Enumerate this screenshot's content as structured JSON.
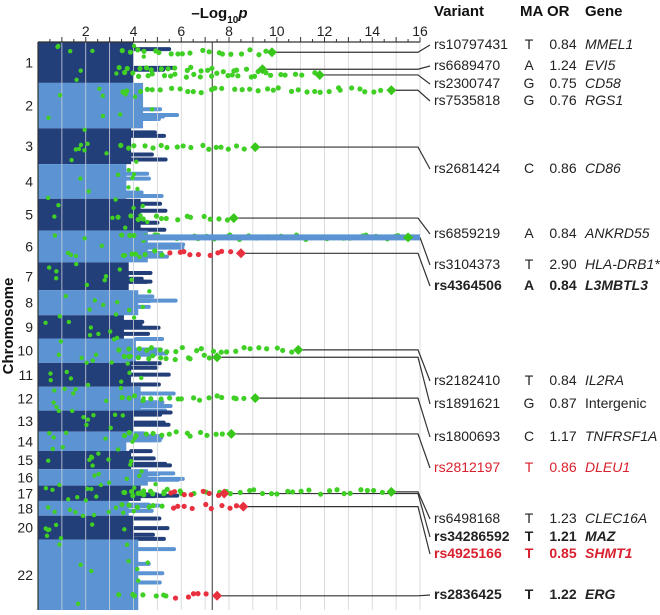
{
  "chart_data": {
    "type": "scatter",
    "subtype": "manhattan",
    "x_axis_title": "–Log",
    "x_axis_sub": "10",
    "x_axis_var": "p",
    "ylabel": "Chromosome",
    "xlim": [
      0,
      16
    ],
    "x_ticks": [
      "2",
      "4",
      "6",
      "8",
      "10",
      "12",
      "14",
      "16"
    ],
    "threshold": 7.3,
    "chromosomes": [
      "1",
      "2",
      "3",
      "4",
      "5",
      "6",
      "7",
      "8",
      "9",
      "10",
      "11",
      "12",
      "13",
      "14",
      "15",
      "16",
      "17",
      "18",
      "20",
      "22"
    ],
    "chrom_ranges": [
      [
        0,
        0.072
      ],
      [
        0.072,
        0.152
      ],
      [
        0.152,
        0.215
      ],
      [
        0.215,
        0.276
      ],
      [
        0.276,
        0.332
      ],
      [
        0.332,
        0.388
      ],
      [
        0.388,
        0.437
      ],
      [
        0.437,
        0.481
      ],
      [
        0.481,
        0.522
      ],
      [
        0.522,
        0.565
      ],
      [
        0.565,
        0.607
      ],
      [
        0.607,
        0.649
      ],
      [
        0.649,
        0.686
      ],
      [
        0.686,
        0.72
      ],
      [
        0.72,
        0.752
      ],
      [
        0.752,
        0.781
      ],
      [
        0.781,
        0.808
      ],
      [
        0.808,
        0.834
      ],
      [
        0.834,
        0.876
      ],
      [
        0.876,
        1.0
      ]
    ],
    "headers": {
      "variant": "Variant",
      "ma": "MA",
      "or": "OR",
      "gene": "Gene"
    },
    "hits": [
      {
        "variant": "rs10797431",
        "ma": "T",
        "or": "0.84",
        "gene": "MMEL1",
        "pos": 0.018,
        "p": 9.8,
        "style": "normal",
        "color": "green"
      },
      {
        "variant": "rs6689470",
        "ma": "A",
        "or": "1.24",
        "gene": "EVI5",
        "pos": 0.048,
        "p": 9.4,
        "style": "normal",
        "color": "green"
      },
      {
        "variant": "rs2300747",
        "ma": "G",
        "or": "0.75",
        "gene": "CD58",
        "pos": 0.058,
        "p": 11.8,
        "style": "normal",
        "color": "green"
      },
      {
        "variant": "rs7535818",
        "ma": "G",
        "or": "0.76",
        "gene": "RGS1",
        "pos": 0.085,
        "p": 14.8,
        "style": "normal",
        "color": "green"
      },
      {
        "variant": "rs2681424",
        "ma": "C",
        "or": "0.86",
        "gene": "CD86",
        "pos": 0.185,
        "p": 9.1,
        "style": "normal",
        "color": "green"
      },
      {
        "variant": "rs6859219",
        "ma": "A",
        "or": "0.84",
        "gene": "ANKRD55",
        "pos": 0.31,
        "p": 8.2,
        "style": "normal",
        "color": "green"
      },
      {
        "variant": "rs3104373",
        "ma": "T",
        "or": "2.90",
        "gene": "HLA-DRB1*",
        "pos": 0.344,
        "p": 15.5,
        "style": "normal",
        "color": "green"
      },
      {
        "variant": "rs4364506",
        "ma": "A",
        "or": "0.84",
        "gene": "L3MBTL3",
        "pos": 0.372,
        "p": 8.5,
        "style": "bold",
        "color": "red"
      },
      {
        "variant": "rs2182410",
        "ma": "T",
        "or": "0.84",
        "gene": "IL2RA",
        "pos": 0.542,
        "p": 10.9,
        "style": "normal",
        "color": "green"
      },
      {
        "variant": "rs1891621",
        "ma": "G",
        "or": "0.87",
        "gene": "Intergenic",
        "pos": 0.555,
        "p": 7.5,
        "style": "normal",
        "color": "green"
      },
      {
        "variant": "rs1800693",
        "ma": "C",
        "or": "1.17",
        "gene": "TNFRSF1A",
        "pos": 0.627,
        "p": 9.1,
        "style": "normal",
        "color": "green"
      },
      {
        "variant": "rs2812197",
        "ma": "T",
        "or": "0.86",
        "gene": "DLEU1",
        "pos": 0.69,
        "p": 8.1,
        "style": "red",
        "color": "green"
      },
      {
        "variant": "rs6498168",
        "ma": "T",
        "or": "1.23",
        "gene": "CLEC16A",
        "pos": 0.792,
        "p": 14.8,
        "style": "normal",
        "color": "green"
      },
      {
        "variant": "rs34286592",
        "ma": "T",
        "or": "1.21",
        "gene": "MAZ",
        "pos": 0.795,
        "p": 7.8,
        "style": "bold",
        "color": "red"
      },
      {
        "variant": "rs4925166",
        "ma": "T",
        "or": "0.85",
        "gene": "SHMT1",
        "pos": 0.818,
        "p": 8.6,
        "style": "boldred",
        "color": "red"
      },
      {
        "variant": "rs2836425",
        "ma": "T",
        "or": "1.22",
        "gene": "ERG",
        "pos": 0.975,
        "p": 7.5,
        "style": "bold",
        "color": "red"
      }
    ]
  }
}
